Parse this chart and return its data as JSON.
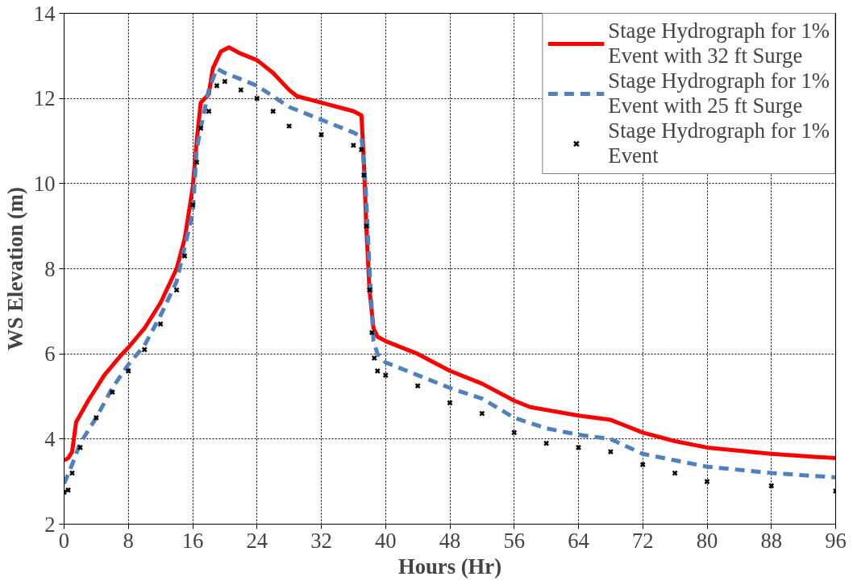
{
  "chart_data": {
    "type": "line",
    "xlabel": "Hours (Hr)",
    "ylabel": "WS Elevation (m)",
    "xlim": [
      0,
      96
    ],
    "ylim": [
      2,
      14
    ],
    "xticks": [
      0,
      8,
      16,
      24,
      32,
      40,
      48,
      56,
      64,
      72,
      80,
      88,
      96
    ],
    "yticks": [
      2,
      4,
      6,
      8,
      10,
      12,
      14
    ],
    "grid": true,
    "legend": "top right",
    "series": [
      {
        "name": "Stage Hydrograph for 1% Event with 32 ft Surge",
        "color": "#ff0000",
        "line_style": "solid",
        "x": [
          0,
          0.5,
          1,
          1.5,
          3,
          5,
          7,
          8,
          10,
          12,
          14,
          15,
          16,
          16.5,
          17,
          18,
          18.5,
          19.5,
          20.5,
          22,
          24,
          26,
          28,
          29,
          32,
          36,
          37,
          37.3,
          37.6,
          38,
          38.5,
          39,
          40,
          44,
          48,
          52,
          56,
          58,
          64,
          68,
          72,
          76,
          80,
          88,
          96
        ],
        "values": [
          3.5,
          3.55,
          3.7,
          4.4,
          4.9,
          5.5,
          5.95,
          6.15,
          6.6,
          7.2,
          8.0,
          8.7,
          9.9,
          11.0,
          11.9,
          12.1,
          12.7,
          13.1,
          13.2,
          13.05,
          12.9,
          12.6,
          12.2,
          12.05,
          11.9,
          11.7,
          11.6,
          10.5,
          9.0,
          7.5,
          6.6,
          6.4,
          6.3,
          6.0,
          5.6,
          5.3,
          4.9,
          4.75,
          4.55,
          4.45,
          4.15,
          3.95,
          3.8,
          3.65,
          3.55
        ]
      },
      {
        "name": "Stage Hydrograph for 1% Event with 25 ft Surge",
        "color": "#4f81bd",
        "line_style": "dashed",
        "x": [
          0,
          1,
          2,
          4,
          6,
          8,
          10,
          12,
          14,
          16,
          16.5,
          17,
          18,
          19,
          20,
          24,
          28,
          32,
          36,
          37,
          37.5,
          38,
          38.5,
          39,
          40,
          44,
          48,
          52,
          56,
          60,
          64,
          68,
          72,
          76,
          80,
          88,
          96
        ],
        "values": [
          2.95,
          3.4,
          3.9,
          4.5,
          5.2,
          5.75,
          6.2,
          6.9,
          7.7,
          9.3,
          10.8,
          11.3,
          12.2,
          12.7,
          12.6,
          12.3,
          11.8,
          11.5,
          11.2,
          11.1,
          10.0,
          8.0,
          6.3,
          6.0,
          5.8,
          5.5,
          5.2,
          4.95,
          4.5,
          4.25,
          4.1,
          4.0,
          3.65,
          3.5,
          3.35,
          3.2,
          3.1
        ]
      },
      {
        "name": "Stage Hydrograph for 1% Event",
        "color": "#000000",
        "type": "scatter",
        "marker": "cross",
        "x": [
          0,
          0.5,
          1,
          2,
          4,
          6,
          8,
          10,
          12,
          14,
          15,
          16,
          16.5,
          17,
          18,
          19,
          20,
          22,
          24,
          26,
          28,
          32,
          36,
          37,
          37.3,
          37.6,
          38,
          38.3,
          38.6,
          39,
          40,
          44,
          48,
          52,
          56,
          60,
          64,
          68,
          72,
          76,
          80,
          88,
          96
        ],
        "values": [
          2.75,
          2.8,
          3.2,
          3.8,
          4.5,
          5.1,
          5.6,
          6.1,
          6.7,
          7.5,
          8.3,
          9.5,
          10.5,
          11.3,
          11.7,
          12.3,
          12.4,
          12.2,
          12.0,
          11.7,
          11.35,
          11.15,
          10.9,
          10.8,
          10.2,
          9.0,
          7.5,
          6.5,
          5.9,
          5.6,
          5.5,
          5.25,
          4.85,
          4.6,
          4.15,
          3.9,
          3.8,
          3.7,
          3.4,
          3.2,
          3.0,
          2.9,
          2.78
        ]
      }
    ]
  }
}
